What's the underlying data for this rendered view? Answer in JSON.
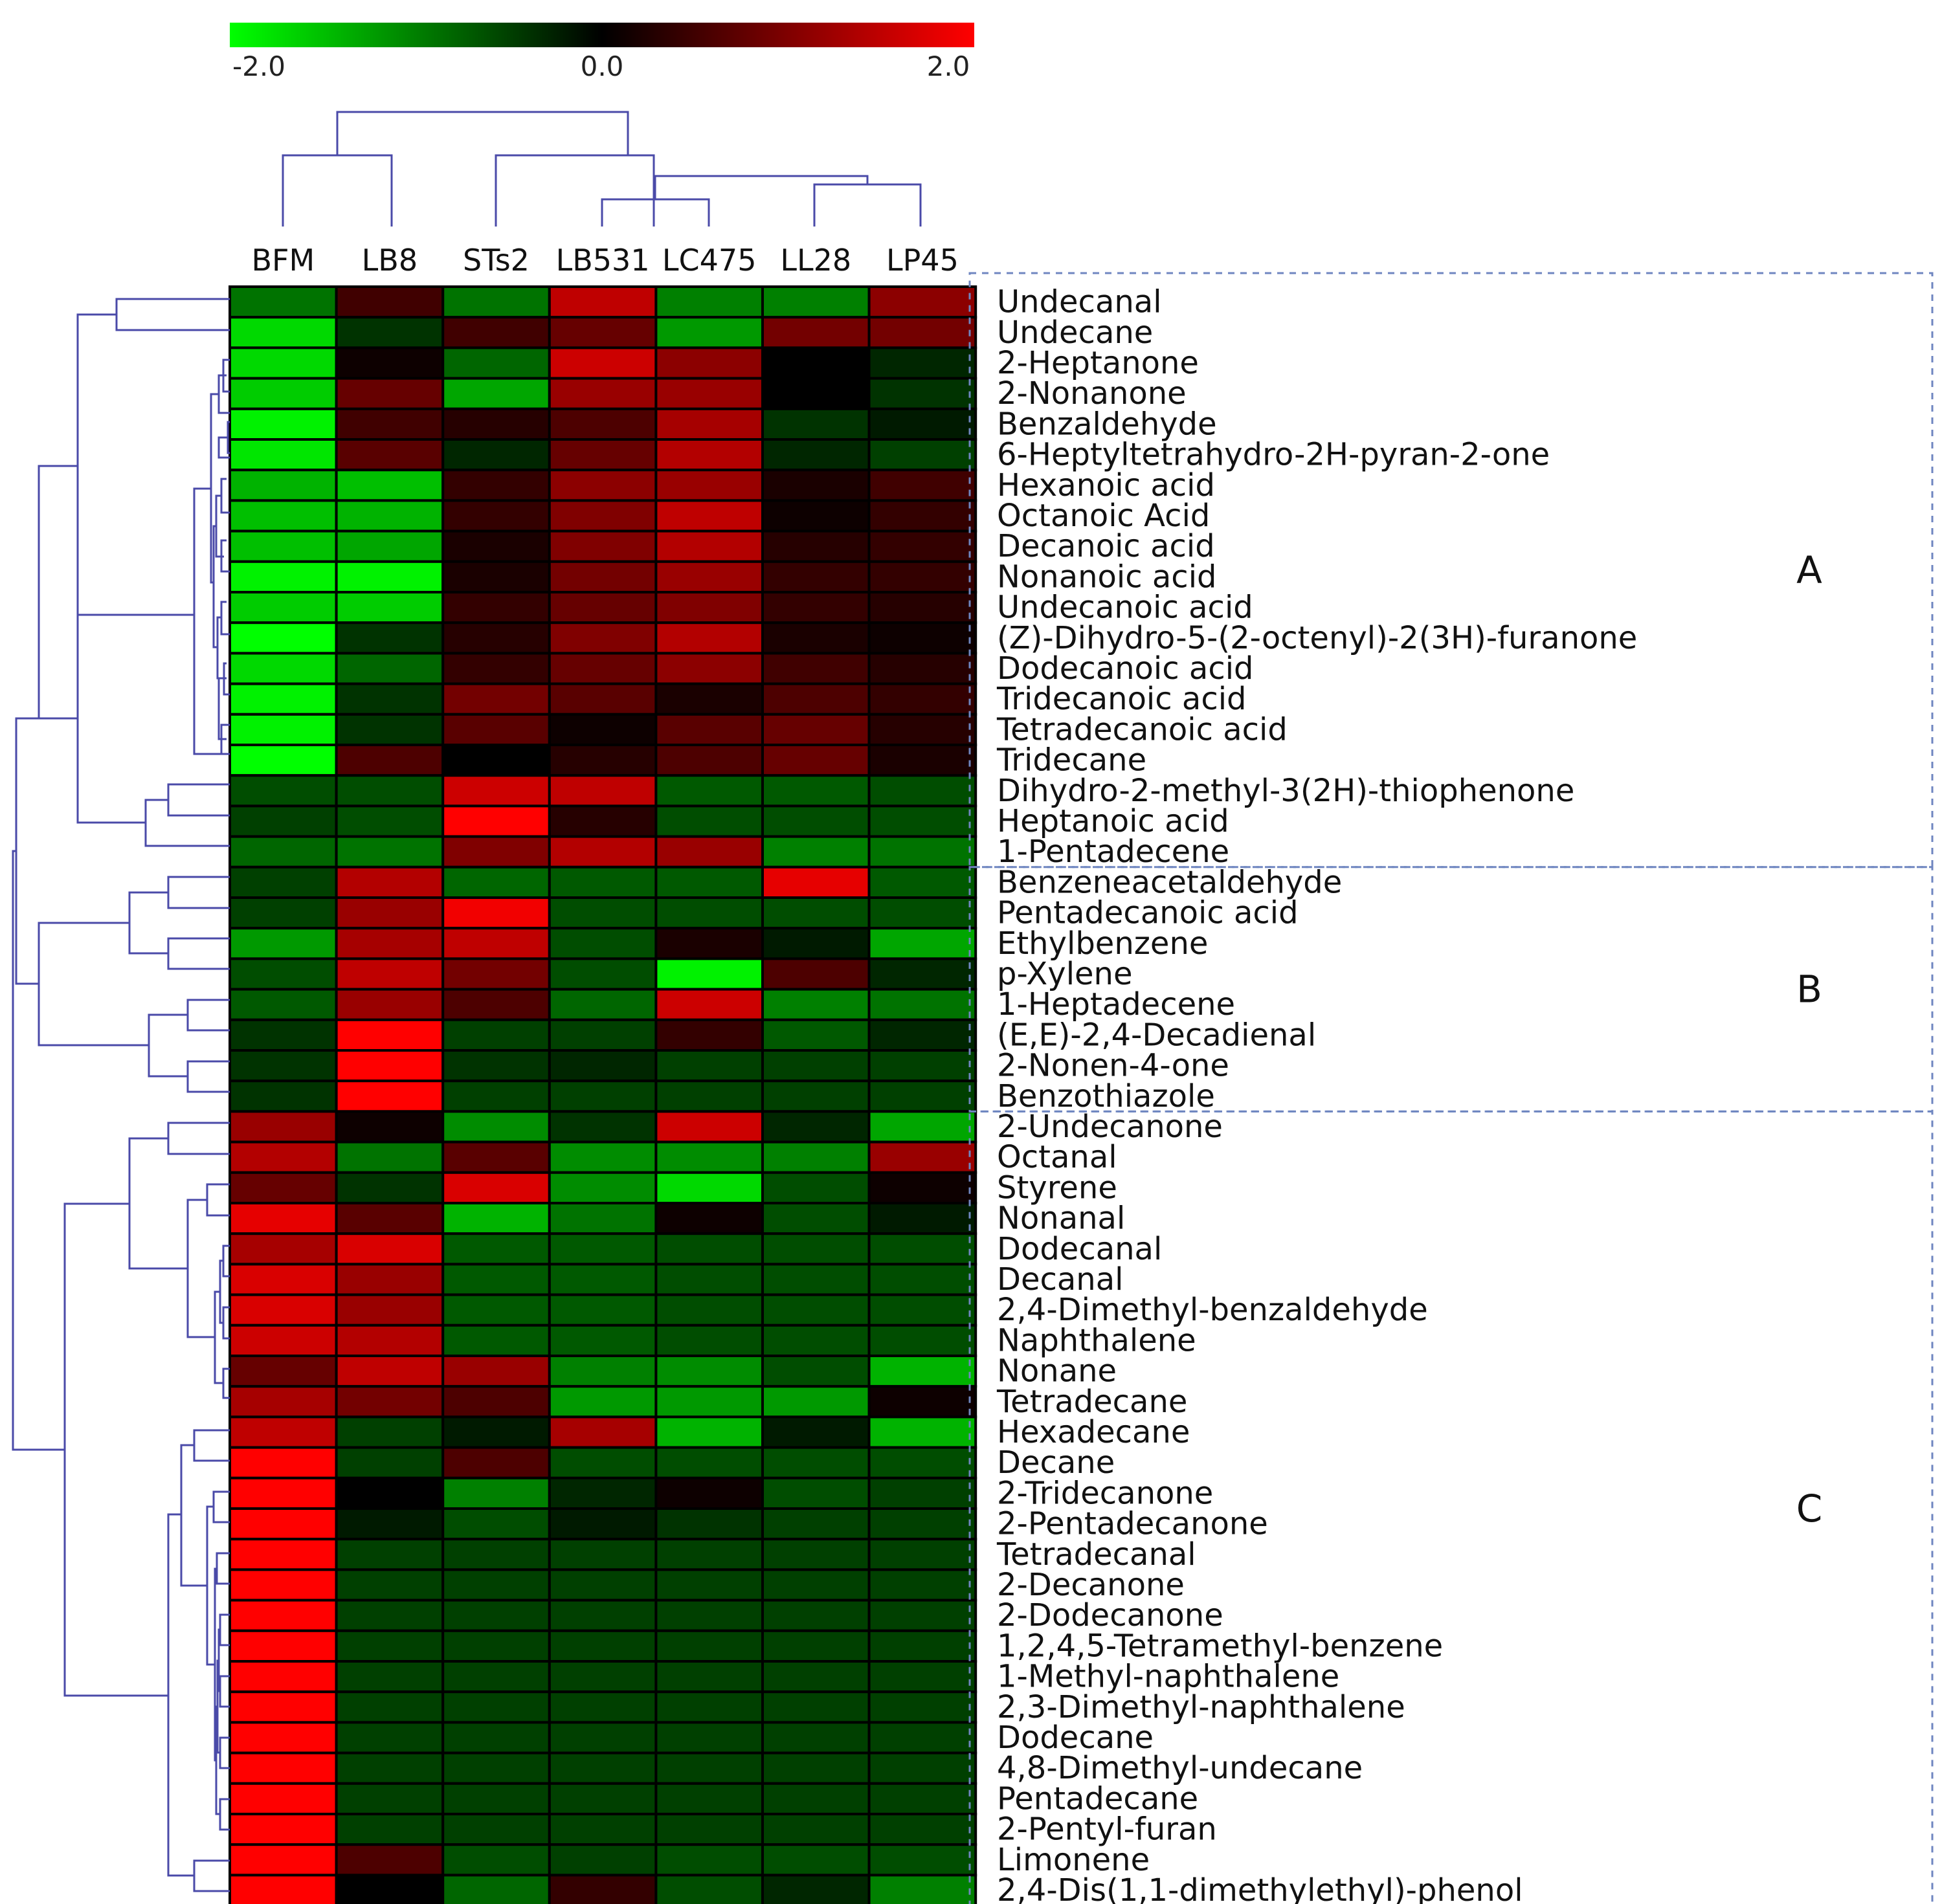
{
  "chart_data": {
    "type": "heatmap",
    "color_scale": {
      "min": -2.0,
      "mid": 0.0,
      "max": 2.0,
      "tick_labels": [
        "-2.0",
        "0.0",
        "2.0"
      ],
      "low_color": "#00ff00",
      "mid_color": "#000000",
      "high_color": "#ff0000"
    },
    "columns": [
      "BFM",
      "LB8",
      "STs2",
      "LB531",
      "LC475",
      "LL28",
      "LP45"
    ],
    "rows": [
      "Undecanal",
      "Undecane",
      "2-Heptanone",
      "2-Nonanone",
      "Benzaldehyde",
      "6-Heptyltetrahydro-2H-pyran-2-one",
      "Hexanoic acid",
      "Octanoic Acid",
      "Decanoic acid",
      "Nonanoic acid",
      "Undecanoic acid",
      "(Z)-Dihydro-5-(2-octenyl)-2(3H)-furanone",
      "Dodecanoic acid",
      "Tridecanoic acid",
      "Tetradecanoic acid",
      "Tridecane",
      "Dihydro-2-methyl-3(2H)-thiophenone",
      "Heptanoic acid",
      "1-Pentadecene",
      "Benzeneacetaldehyde",
      "Pentadecanoic acid",
      "Ethylbenzene",
      "p-Xylene",
      "1-Heptadecene",
      "(E,E)-2,4-Decadienal",
      "2-Nonen-4-one",
      "Benzothiazole",
      "2-Undecanone",
      "Octanal",
      "Styrene",
      "Nonanal",
      "Dodecanal",
      "Decanal",
      "2,4-Dimethyl-benzaldehyde",
      "Naphthalene",
      "Nonane",
      "Tetradecane",
      "Hexadecane",
      "Decane",
      "2-Tridecanone",
      "2-Pentadecanone",
      "Tetradecanal",
      "2-Decanone",
      "2-Dodecanone",
      "1,2,4,5-Tetramethyl-benzene",
      "1-Methyl-naphthalene",
      "2,3-Dimethyl-naphthalene",
      "Dodecane",
      "4,8-Dimethyl-undecane",
      "Pentadecane",
      "2-Pentyl-furan",
      "Limonene",
      "2,4-Dis(1,1-dimethylethyl)-phenol"
    ],
    "values": [
      [
        -0.9,
        0.5,
        -0.9,
        1.5,
        -1.0,
        -1.0,
        1.1
      ],
      [
        -1.7,
        -0.4,
        0.5,
        0.8,
        -1.2,
        0.9,
        0.9
      ],
      [
        -1.7,
        0.1,
        -0.8,
        1.6,
        1.1,
        0.0,
        -0.3
      ],
      [
        -1.6,
        0.8,
        -1.3,
        1.2,
        1.2,
        0.0,
        -0.4
      ],
      [
        -1.9,
        0.5,
        0.3,
        0.6,
        1.3,
        -0.4,
        -0.2
      ],
      [
        -1.8,
        0.7,
        -0.3,
        0.8,
        1.4,
        -0.3,
        -0.5
      ],
      [
        -1.4,
        -1.5,
        0.4,
        1.1,
        1.2,
        0.2,
        0.5
      ],
      [
        -1.5,
        -1.4,
        0.4,
        1.0,
        1.5,
        0.1,
        0.4
      ],
      [
        -1.5,
        -1.3,
        0.2,
        1.0,
        1.4,
        0.3,
        0.4
      ],
      [
        -1.9,
        -1.9,
        0.2,
        0.9,
        1.2,
        0.4,
        0.4
      ],
      [
        -1.6,
        -1.6,
        0.4,
        0.8,
        1.0,
        0.4,
        0.3
      ],
      [
        -2.0,
        -0.4,
        0.3,
        1.0,
        1.4,
        0.2,
        0.1
      ],
      [
        -1.7,
        -0.8,
        0.4,
        0.8,
        1.1,
        0.5,
        0.3
      ],
      [
        -1.9,
        -0.4,
        0.9,
        0.7,
        0.2,
        0.6,
        0.4
      ],
      [
        -1.9,
        -0.4,
        0.7,
        0.1,
        0.7,
        0.8,
        0.3
      ],
      [
        -2.0,
        0.6,
        0.0,
        0.3,
        0.6,
        0.8,
        0.2
      ],
      [
        -0.6,
        -0.6,
        1.6,
        1.5,
        -0.7,
        -0.7,
        -0.6
      ],
      [
        -0.5,
        -0.6,
        2.0,
        0.3,
        -0.6,
        -0.6,
        -0.6
      ],
      [
        -0.8,
        -0.9,
        1.0,
        1.4,
        1.2,
        -1.0,
        -0.9
      ],
      [
        -0.5,
        1.4,
        -0.8,
        -0.7,
        -0.7,
        1.8,
        -0.7
      ],
      [
        -0.5,
        1.2,
        1.9,
        -0.6,
        -0.6,
        -0.6,
        -0.6
      ],
      [
        -1.2,
        1.3,
        1.5,
        -0.6,
        0.2,
        -0.2,
        -1.3
      ],
      [
        -0.6,
        1.5,
        0.9,
        -0.6,
        -1.9,
        0.6,
        -0.3
      ],
      [
        -0.7,
        1.2,
        0.6,
        -0.8,
        1.6,
        -1.0,
        -0.9
      ],
      [
        -0.4,
        2.0,
        -0.5,
        -0.5,
        0.4,
        -0.7,
        -0.3
      ],
      [
        -0.4,
        2.0,
        -0.4,
        -0.3,
        -0.5,
        -0.5,
        -0.5
      ],
      [
        -0.4,
        2.0,
        -0.5,
        -0.5,
        -0.5,
        -0.5,
        -0.5
      ],
      [
        1.2,
        0.1,
        -1.1,
        -0.4,
        1.6,
        -0.3,
        -1.3
      ],
      [
        1.4,
        -0.9,
        0.7,
        -1.1,
        -1.1,
        -1.0,
        1.2
      ],
      [
        0.8,
        -0.4,
        1.7,
        -1.1,
        -1.7,
        -0.6,
        0.1
      ],
      [
        1.8,
        0.7,
        -1.4,
        -0.9,
        0.1,
        -0.6,
        -0.2
      ],
      [
        1.3,
        1.7,
        -0.7,
        -0.7,
        -0.6,
        -0.6,
        -0.6
      ],
      [
        1.7,
        1.2,
        -0.7,
        -0.7,
        -0.6,
        -0.6,
        -0.6
      ],
      [
        1.7,
        1.2,
        -0.7,
        -0.7,
        -0.6,
        -0.6,
        -0.6
      ],
      [
        1.6,
        1.4,
        -0.7,
        -0.7,
        -0.6,
        -0.6,
        -0.6
      ],
      [
        0.8,
        1.5,
        1.2,
        -1.0,
        -1.1,
        -0.6,
        -1.4
      ],
      [
        1.3,
        0.9,
        0.6,
        -1.2,
        -1.2,
        -1.2,
        0.1
      ],
      [
        1.5,
        -0.5,
        -0.2,
        1.3,
        -1.4,
        -0.2,
        -1.4
      ],
      [
        2.0,
        -0.5,
        0.6,
        -0.6,
        -0.6,
        -0.6,
        -0.6
      ],
      [
        2.0,
        0.0,
        -1.0,
        -0.3,
        0.1,
        -0.6,
        -0.5
      ],
      [
        2.0,
        -0.2,
        -0.6,
        -0.2,
        -0.4,
        -0.5,
        -0.5
      ],
      [
        2.0,
        -0.5,
        -0.5,
        -0.5,
        -0.5,
        -0.5,
        -0.5
      ],
      [
        2.0,
        -0.5,
        -0.5,
        -0.5,
        -0.5,
        -0.5,
        -0.5
      ],
      [
        2.0,
        -0.5,
        -0.5,
        -0.5,
        -0.5,
        -0.5,
        -0.5
      ],
      [
        2.0,
        -0.5,
        -0.5,
        -0.5,
        -0.5,
        -0.5,
        -0.5
      ],
      [
        2.0,
        -0.5,
        -0.5,
        -0.5,
        -0.5,
        -0.5,
        -0.5
      ],
      [
        2.0,
        -0.5,
        -0.5,
        -0.5,
        -0.5,
        -0.5,
        -0.5
      ],
      [
        2.0,
        -0.5,
        -0.5,
        -0.5,
        -0.5,
        -0.5,
        -0.5
      ],
      [
        2.0,
        -0.5,
        -0.5,
        -0.5,
        -0.5,
        -0.5,
        -0.5
      ],
      [
        2.0,
        -0.5,
        -0.5,
        -0.5,
        -0.5,
        -0.5,
        -0.5
      ],
      [
        2.0,
        -0.5,
        -0.5,
        -0.5,
        -0.5,
        -0.5,
        -0.5
      ],
      [
        2.0,
        0.6,
        -0.6,
        -0.5,
        -0.6,
        -0.6,
        -0.6
      ],
      [
        2.0,
        0.0,
        -0.8,
        0.4,
        -0.6,
        -0.3,
        -1.0
      ]
    ],
    "clusters": [
      {
        "label": "A",
        "first_row": 0,
        "last_row": 18
      },
      {
        "label": "B",
        "first_row": 19,
        "last_row": 26
      },
      {
        "label": "C",
        "first_row": 27,
        "last_row": 52
      }
    ],
    "column_dendrogram": [
      "((BFM,LB8),(STs2,((LB531,LC475),(LL28,LP45))))"
    ],
    "row_dendrogram": "hierarchical clustering of rows",
    "grid": true,
    "legend": "top"
  }
}
